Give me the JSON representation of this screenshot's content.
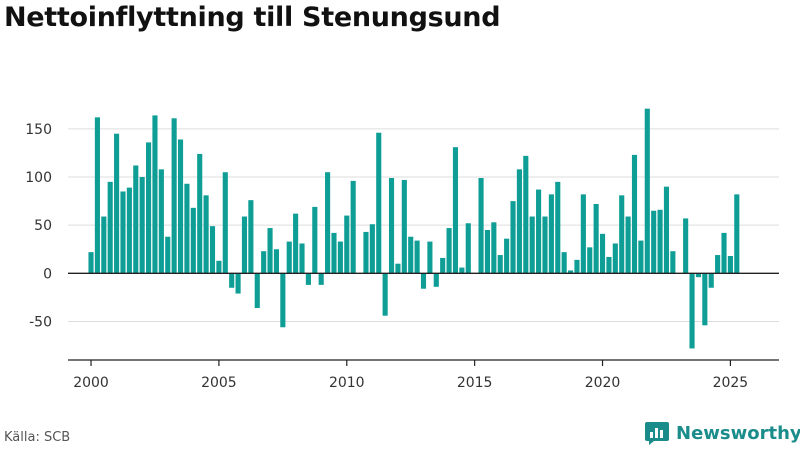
{
  "title": "Nettoinflyttning till Stenungsund",
  "source": "Källa: SCB",
  "brand": {
    "name": "Newsworthy",
    "icon": "newsworthy-logo-icon"
  },
  "colors": {
    "bar": "#0f9e96",
    "grid": "#dddddd",
    "axis": "#222222",
    "brand": "#1a8c8a"
  },
  "chart_data": {
    "type": "bar",
    "x_axis": {
      "type": "time",
      "ticks": [
        2000,
        2005,
        2010,
        2015,
        2020,
        2025
      ],
      "range": [
        1999.1,
        2026.9
      ]
    },
    "y_axis": {
      "ticks": [
        -50,
        0,
        50,
        100,
        150
      ],
      "range": [
        -90,
        180
      ]
    },
    "grid": true,
    "series": [
      {
        "start": "2000 Q1",
        "frequency": "quarterly",
        "values": [
          22,
          162,
          59,
          95,
          145,
          85,
          89,
          112,
          100,
          136,
          164,
          108,
          38,
          161,
          139,
          93,
          68,
          124,
          81,
          49,
          13,
          105,
          -15,
          -21,
          59,
          76,
          -36,
          23,
          47,
          25,
          -56,
          33,
          62,
          31,
          -12,
          69,
          -12,
          105,
          42,
          33,
          60,
          96,
          0,
          43,
          51,
          146,
          -44,
          99,
          10,
          97,
          38,
          34,
          -16,
          33,
          -14,
          16,
          47,
          131,
          6,
          52,
          0,
          99,
          45,
          53,
          19,
          36,
          75,
          108,
          122,
          59,
          87,
          59,
          82,
          95,
          22,
          3,
          14,
          82,
          27,
          72,
          41,
          17,
          31,
          81,
          59,
          123,
          34,
          171,
          65,
          66,
          90,
          23,
          0,
          57,
          -78,
          -4,
          -54,
          -15,
          19,
          42,
          18,
          82
        ]
      }
    ]
  }
}
